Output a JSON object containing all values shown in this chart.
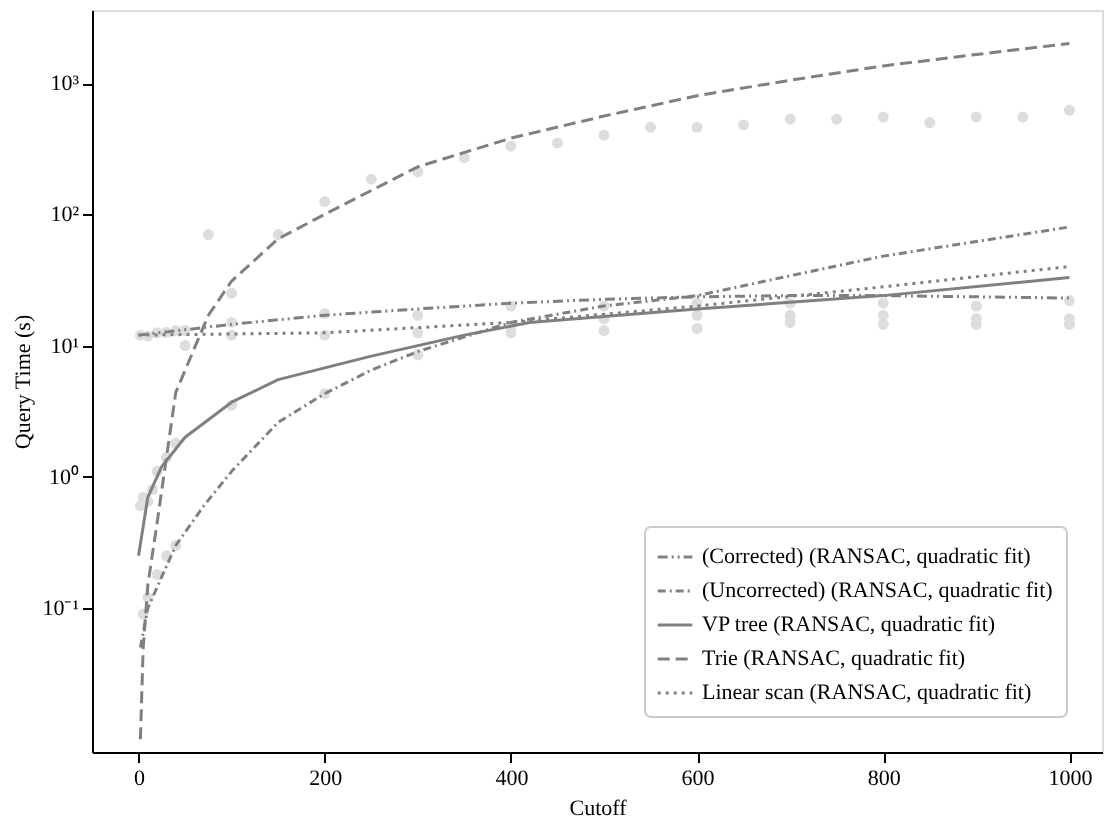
{
  "chart_data": {
    "type": "line",
    "xlabel": "Cutoff",
    "ylabel": "Query Time (s)",
    "log": "y",
    "grid": false,
    "legend": "bottom right",
    "marker": "none",
    "xlim": [
      -50,
      1035
    ],
    "xticks": [
      0,
      200,
      400,
      600,
      800,
      1000
    ],
    "ylim": [
      0.008,
      3600
    ],
    "yticks": [
      {
        "value": 0.1,
        "label": "10⁻¹"
      },
      {
        "value": 1,
        "label": "10⁰"
      },
      {
        "value": 10,
        "label": "10¹"
      },
      {
        "value": 100,
        "label": "10²"
      },
      {
        "value": 1000,
        "label": "10³"
      }
    ],
    "series": [
      {
        "type": "scatter",
        "color": "#dddddd",
        "marker": "circle",
        "x": [
          2,
          10,
          20,
          30,
          40,
          2,
          5,
          10,
          15,
          20,
          30,
          40,
          5,
          10,
          20,
          30,
          40,
          50,
          75,
          100,
          150,
          200,
          250,
          300,
          350,
          400,
          450,
          500,
          550,
          600,
          650,
          700,
          750,
          800,
          850,
          900,
          950,
          1000,
          100,
          200,
          300,
          400,
          500,
          600,
          700,
          800,
          900,
          1000,
          100,
          200,
          300,
          400,
          500,
          600,
          700,
          800,
          900,
          1000,
          50,
          100,
          200,
          300,
          400,
          500,
          600,
          700,
          800,
          900,
          1000
        ],
        "values": [
          12,
          11.8,
          12.5,
          12.6,
          13,
          0.6,
          0.7,
          0.65,
          0.8,
          1.1,
          1.4,
          1.8,
          0.09,
          0.12,
          0.18,
          0.25,
          0.3,
          10,
          70,
          25,
          70,
          125,
          185,
          210,
          270,
          330,
          350,
          400,
          460,
          460,
          480,
          530,
          530,
          550,
          500,
          550,
          550,
          620,
          3.5,
          4.3,
          8.5,
          12.5,
          16,
          17,
          17,
          17,
          16,
          16,
          15,
          17.5,
          17,
          20,
          20,
          21,
          21,
          21,
          20,
          22,
          13,
          12,
          12,
          12.5,
          14,
          13,
          13.5,
          15,
          14.5,
          14.5,
          14.5
        ]
      },
      {
        "name": "(Corrected) (RANSAC, quadratic fit)",
        "color": "#808080",
        "line_style": "dashdotdot",
        "x": [
          0,
          100,
          200,
          300,
          400,
          500,
          600,
          700,
          800,
          900,
          1000
        ],
        "values": [
          12,
          14.5,
          17,
          19,
          21,
          22.5,
          23.5,
          24,
          24,
          23.5,
          23
        ]
      },
      {
        "name": "(Uncorrected) (RANSAC, quadratic fit)",
        "color": "#808080",
        "line_style": "dashdot",
        "x": [
          2,
          10,
          40,
          70,
          100,
          150,
          200,
          250,
          300,
          400,
          500,
          600,
          700,
          800,
          900,
          1000
        ],
        "values": [
          0.05,
          0.1,
          0.3,
          0.6,
          1.1,
          2.6,
          4.3,
          6.5,
          9,
          15,
          20,
          24,
          34,
          48,
          62,
          80
        ]
      },
      {
        "name": "VP tree (RANSAC, quadratic fit)",
        "color": "#808080",
        "line_style": "solid",
        "x": [
          0,
          10,
          25,
          50,
          100,
          150,
          250,
          350,
          420,
          600,
          800,
          1000
        ],
        "values": [
          0.25,
          0.7,
          1.2,
          2,
          3.7,
          5.5,
          8.3,
          12,
          15,
          19,
          24,
          33
        ]
      },
      {
        "name": "Trie (RANSAC, quadratic fit)",
        "color": "#808080",
        "line_style": "dashed",
        "x": [
          2,
          5,
          10,
          20,
          40,
          75,
          100,
          150,
          200,
          300,
          400,
          500,
          600,
          700,
          800,
          900,
          1000
        ],
        "values": [
          0.01,
          0.05,
          0.15,
          0.45,
          4.4,
          17,
          31,
          65,
          100,
          230,
          380,
          560,
          800,
          1050,
          1350,
          1650,
          2000
        ]
      },
      {
        "name": "Linear scan (RANSAC, quadratic fit)",
        "color": "#808080",
        "line_style": "dotted",
        "x": [
          0,
          200,
          400,
          600,
          800,
          1000
        ],
        "values": [
          12,
          12.5,
          15,
          20,
          28,
          40
        ]
      }
    ]
  }
}
